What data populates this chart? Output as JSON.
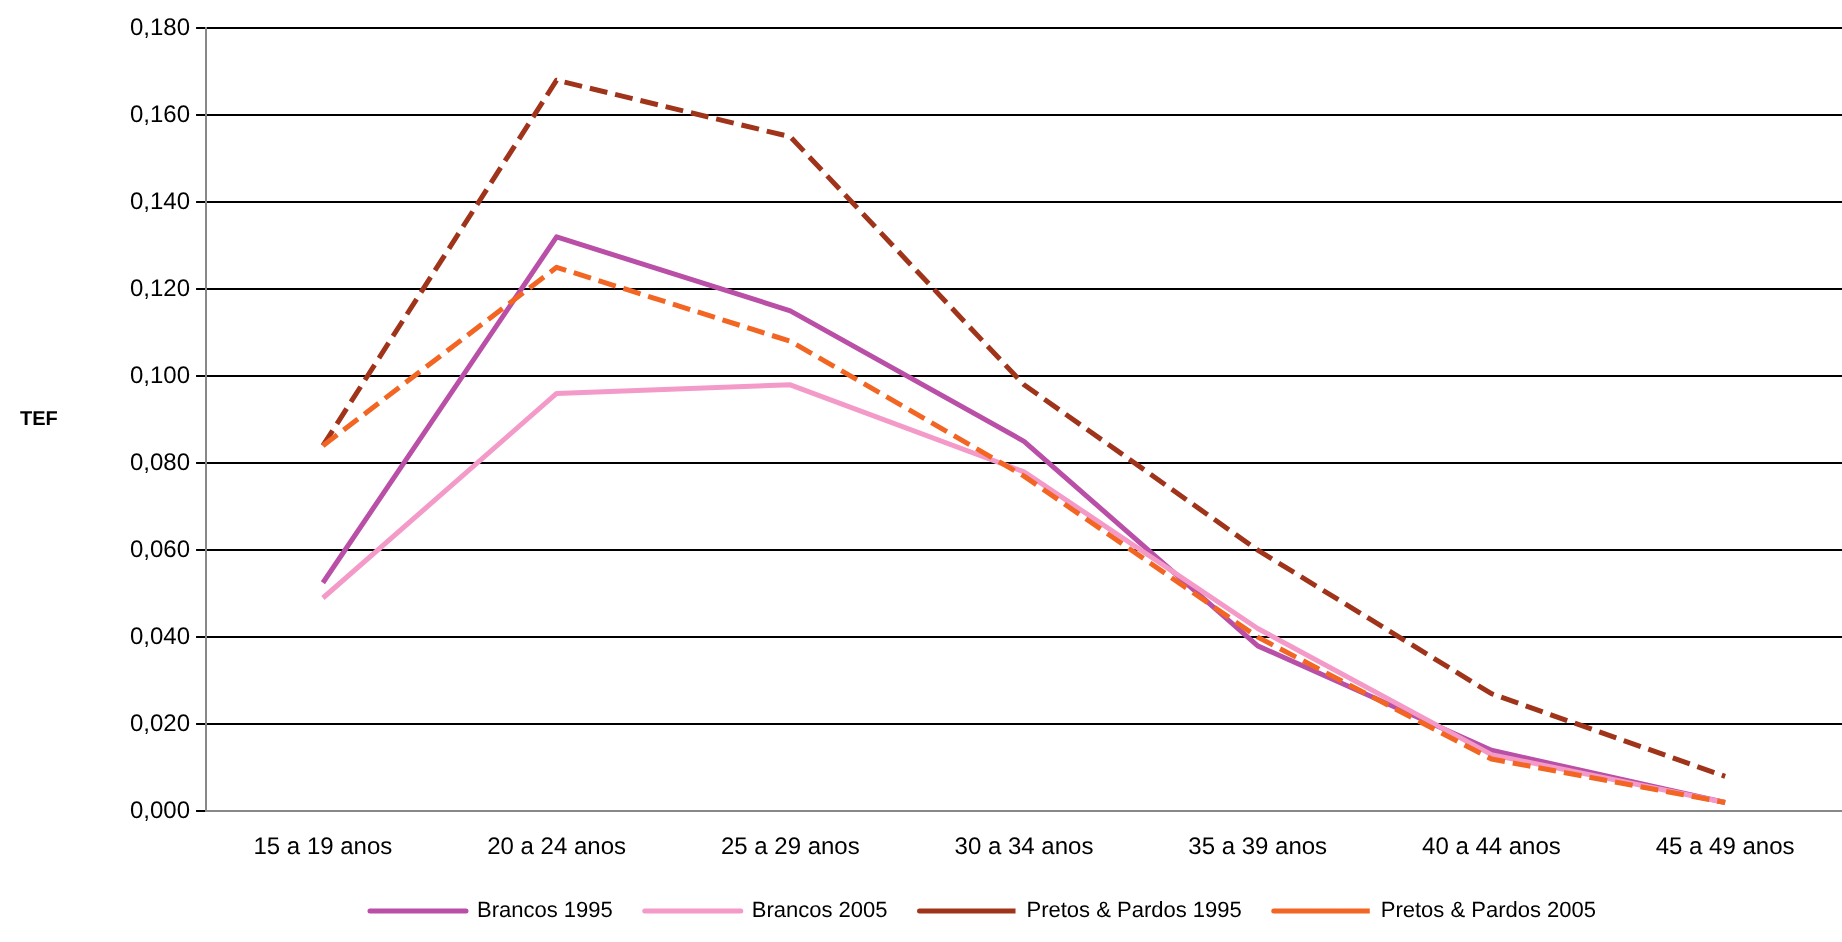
{
  "chart_data": {
    "type": "line",
    "ylabel": "TEF",
    "categories": [
      "15 a 19 anos",
      "20 a 24 anos",
      "25 a 29 anos",
      "30 a 34 anos",
      "35 a 39 anos",
      "40 a 44 anos",
      "45 a 49 anos"
    ],
    "series": [
      {
        "name": "Brancos 1995",
        "color": "#b94fa6",
        "line_style": "solid",
        "values": [
          0.0525,
          0.132,
          0.115,
          0.085,
          0.038,
          0.014,
          0.002
        ]
      },
      {
        "name": "Brancos 2005",
        "color": "#f49ac8",
        "line_style": "solid",
        "values": [
          0.049,
          0.096,
          0.098,
          0.078,
          0.042,
          0.013,
          0.002
        ]
      },
      {
        "name": "Pretos & Pardos 1995",
        "color": "#a0341b",
        "line_style": "dashed",
        "values": [
          0.084,
          0.168,
          0.155,
          0.098,
          0.06,
          0.027,
          0.008
        ]
      },
      {
        "name": "Pretos & Pardos 2005",
        "color": "#f26522",
        "line_style": "dashed",
        "values": [
          0.084,
          0.125,
          0.108,
          0.077,
          0.04,
          0.012,
          0.002
        ]
      }
    ],
    "ylim": [
      0,
      0.18
    ],
    "yticks": [
      {
        "value": 0,
        "label": "0,000"
      },
      {
        "value": 0.02,
        "label": "0,020"
      },
      {
        "value": 0.04,
        "label": "0,040"
      },
      {
        "value": 0.06,
        "label": "0,060"
      },
      {
        "value": 0.08,
        "label": "0,080"
      },
      {
        "value": 0.1,
        "label": "0,100"
      },
      {
        "value": 0.12,
        "label": "0,120"
      },
      {
        "value": 0.14,
        "label": "0,140"
      },
      {
        "value": 0.16,
        "label": "0,160"
      },
      {
        "value": 0.18,
        "label": "0,180"
      }
    ],
    "grid": "y",
    "legend": "bottom",
    "marker": "none"
  }
}
